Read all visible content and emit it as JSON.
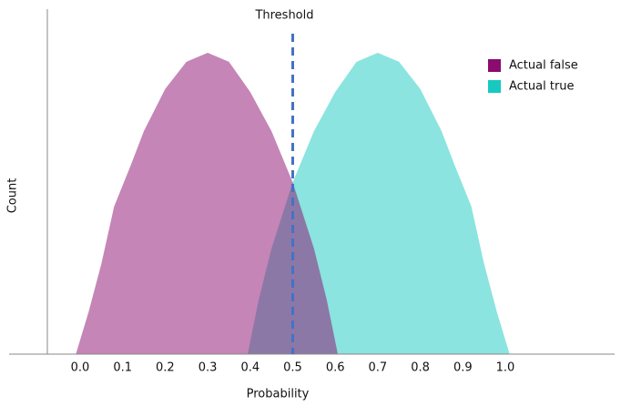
{
  "chart_data": {
    "type": "area",
    "x_label": "Probability",
    "y_label": "Count",
    "xlim": [
      -0.167,
      1.257
    ],
    "ylim": [
      0,
      114.5
    ],
    "xticks": [
      {
        "value": 0,
        "label": "0.0"
      },
      0.1,
      0.2,
      0.3,
      0.4,
      0.5,
      0.6,
      0.7,
      0.8,
      0.9,
      {
        "value": 1,
        "label": "1.0"
      }
    ],
    "grid": false,
    "legend": "upper right",
    "threshold": {
      "label": "Threshold",
      "value": 0.5,
      "color": "#4472c4"
    },
    "series": [
      {
        "name": "Actual false",
        "color": "#8b0b6e",
        "x": [
          -0.01,
          0.02,
          0.05,
          0.08,
          0.12,
          0.15,
          0.2,
          0.25,
          0.3,
          0.35,
          0.4,
          0.45,
          0.5,
          0.55,
          0.58,
          0.606
        ],
        "values": [
          0,
          14,
          30,
          49,
          63,
          74,
          88,
          97,
          100,
          97,
          87,
          74,
          57,
          35,
          18,
          0
        ]
      },
      {
        "name": "Actual true",
        "color": "#17c9c0",
        "x": [
          0.394,
          0.42,
          0.45,
          0.5,
          0.55,
          0.6,
          0.65,
          0.7,
          0.75,
          0.8,
          0.85,
          0.88,
          0.92,
          0.95,
          0.98,
          1.01
        ],
        "values": [
          0,
          18,
          35,
          57,
          74,
          87,
          97,
          100,
          97,
          88,
          74,
          63,
          49,
          30,
          14,
          0
        ]
      }
    ]
  }
}
